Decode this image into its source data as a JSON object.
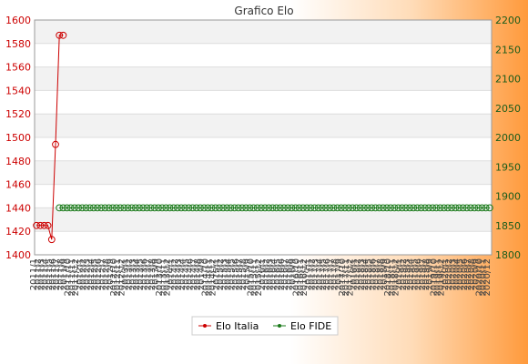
{
  "chart_data": {
    "type": "line",
    "title": "Grafico Elo",
    "xlabel": "",
    "ylabel_left": "",
    "ylabel_right": "",
    "ylim_left": [
      1400,
      1600
    ],
    "ylim_right": [
      1800,
      2200
    ],
    "yticks_left": [
      1400,
      1420,
      1440,
      1460,
      1480,
      1500,
      1520,
      1540,
      1560,
      1580,
      1600
    ],
    "yticks_right": [
      1800,
      1850,
      1900,
      1950,
      2000,
      2050,
      2100,
      2150,
      2200
    ],
    "grid": true,
    "legend": "bottom",
    "x_tick_labels": [
      "2011/1",
      "2011/2",
      "2011/3",
      "2011/4",
      "2011/5",
      "2011/6",
      "2011/7",
      "2011/8",
      "2011/9",
      "2011/10",
      "2011/11",
      "2011/12",
      "2012/1",
      "2012/2",
      "2012/3",
      "2012/4",
      "2012/5",
      "2012/6",
      "2012/7",
      "2012/8",
      "2012/9",
      "2012/10",
      "2012/11",
      "2012/12",
      "2013/1",
      "2013/2",
      "2013/3",
      "2013/4",
      "2013/5",
      "2013/6",
      "2013/7",
      "2013/8",
      "2013/9",
      "2013/10",
      "2013/11",
      "2013/12",
      "2014/1",
      "2014/2",
      "2014/3",
      "2014/4",
      "2014/5",
      "2014/6",
      "2014/7",
      "2014/8",
      "2014/9",
      "2014/10",
      "2014/11",
      "2014/12",
      "2015/1",
      "2015/2",
      "2015/3",
      "2015/4",
      "2015/5",
      "2015/6",
      "2015/7",
      "2015/8",
      "2015/9",
      "2015/10",
      "2015/11",
      "2015/12",
      "2016/1",
      "2016/2",
      "2016/3",
      "2016/4",
      "2016/5",
      "2016/6",
      "2016/7",
      "2016/8",
      "2016/9",
      "2016/10",
      "2016/11",
      "2016/12",
      "2017/1",
      "2017/2",
      "2017/3",
      "2017/4",
      "2017/5",
      "2017/6",
      "2017/7",
      "2017/8",
      "2017/9",
      "2017/10",
      "2017/11",
      "2017/12",
      "2018/1",
      "2018/2",
      "2018/3",
      "2018/4",
      "2018/5",
      "2018/6",
      "2018/7",
      "2018/8",
      "2018/9",
      "2018/10",
      "2018/11",
      "2018/12",
      "2019/1",
      "2019/2",
      "2019/3",
      "2019/4",
      "2019/5",
      "2019/6",
      "2019/7",
      "2019/8",
      "2019/9",
      "2019/10",
      "2019/11",
      "2019/12",
      "2020/1",
      "2020/2",
      "2020/3",
      "2020/4",
      "2020/5",
      "2020/6",
      "2020/7",
      "2020/8",
      "2020/9",
      "2020/10",
      "2020/11",
      "2020/12"
    ],
    "series": [
      {
        "name": "Elo Italia",
        "axis": "left",
        "color": "#cc0000",
        "start_index": 0,
        "values": [
          1425,
          1425,
          1425,
          1425,
          1413,
          1494,
          1587,
          1587
        ]
      },
      {
        "name": "Elo FIDE",
        "axis": "right",
        "color": "#1a7a1a",
        "start_index": 6,
        "values": [
          1880,
          1880,
          1880,
          1880,
          1880,
          1880,
          1880,
          1880,
          1880,
          1880,
          1880,
          1880,
          1880,
          1880,
          1880,
          1880,
          1880,
          1880,
          1880,
          1880,
          1880,
          1880,
          1880,
          1880,
          1880,
          1880,
          1880,
          1880,
          1880,
          1880,
          1880,
          1880,
          1880,
          1880,
          1880,
          1880,
          1880,
          1880,
          1880,
          1880,
          1880,
          1880,
          1880,
          1880,
          1880,
          1880,
          1880,
          1880,
          1880,
          1880,
          1880,
          1880,
          1880,
          1880,
          1880,
          1880,
          1880,
          1880,
          1880,
          1880,
          1880,
          1880,
          1880,
          1880,
          1880,
          1880,
          1880,
          1880,
          1880,
          1880,
          1880,
          1880,
          1880,
          1880,
          1880,
          1880,
          1880,
          1880,
          1880,
          1880,
          1880,
          1880,
          1880,
          1880,
          1880,
          1880,
          1880,
          1880,
          1880,
          1880,
          1880,
          1880,
          1880,
          1880,
          1880,
          1880,
          1880,
          1880,
          1880,
          1880,
          1880,
          1880,
          1880,
          1880,
          1880,
          1880,
          1880,
          1880,
          1880,
          1880,
          1880,
          1880,
          1880,
          1880
        ]
      }
    ]
  }
}
